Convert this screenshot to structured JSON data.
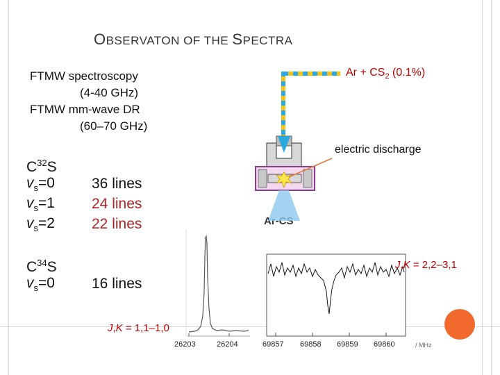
{
  "slide": {
    "title_first": "O",
    "title_rest": "BSERVATON OF THE ",
    "title_first2": "S",
    "title_rest2": "PECTRA"
  },
  "methods": {
    "line1": "FTMW spectroscopy",
    "line2": "(4-40 GHz)",
    "line3": "FTMW mm-wave DR",
    "line4": "(60–70 GHz)"
  },
  "isotopes": [
    {
      "name_prefix": "C",
      "mass": "32",
      "name_suffix": "S",
      "states": [
        {
          "v": "v",
          "sub": "s",
          "eq": "=0",
          "lines": "36 lines"
        },
        {
          "v": "v",
          "sub": "s",
          "eq": "=1",
          "lines": "24 lines"
        },
        {
          "v": "v",
          "sub": "s",
          "eq": "=2",
          "lines": "22 lines"
        }
      ]
    },
    {
      "name_prefix": "C",
      "mass": "34",
      "name_suffix": "S",
      "states": [
        {
          "v": "v",
          "sub": "s",
          "eq": "=0",
          "lines": "16 lines"
        }
      ]
    }
  ],
  "apparatus": {
    "gas_prefix": "Ar + CS",
    "gas_sub": "2",
    "gas_suffix": " (0.1%)",
    "discharge": "electric discharge",
    "beam": "Ar-CS"
  },
  "spectrum_left": {
    "label_j": "J",
    "label_sep": ",",
    "label_k": "K",
    "label_val": " = 1,1–1,0",
    "ticks": [
      "26203",
      "26204"
    ]
  },
  "spectrum_right": {
    "label_j": "J",
    "label_sep": ",",
    "label_k": "K",
    "label_val": " = 2,2–3,1",
    "ticks": [
      "69857",
      "69858",
      "69859",
      "69860"
    ],
    "unit": "/ MHz"
  },
  "colors": {
    "accent_red": "#b22222",
    "gas_line_yellow": "#f2c418",
    "gas_line_blue": "#2aa8e0",
    "nozzle_purple": "#8a3b8f",
    "beam_blue": "#8cc8ee",
    "corner_circle": "#f26a2e"
  }
}
